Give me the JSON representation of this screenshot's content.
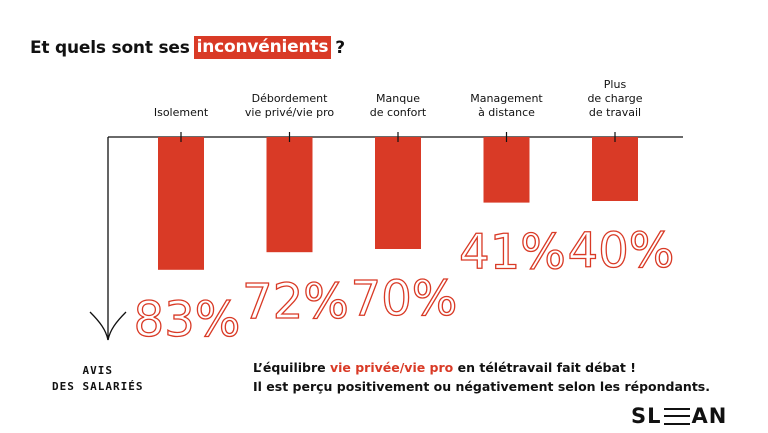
{
  "title": {
    "before": "Et quels sont ses",
    "highlight": "inconvénients",
    "after": "?"
  },
  "colors": {
    "accent": "#d93a26",
    "text": "#111111",
    "background": "#ffffff"
  },
  "chart_data": {
    "type": "bar",
    "orientation": "downward",
    "categories": [
      [
        "Isolement"
      ],
      [
        "Débordement",
        "vie privé/vie pro"
      ],
      [
        "Manque",
        "de confort"
      ],
      [
        "Management",
        "à distance"
      ],
      [
        "Plus",
        "de charge",
        "de travail"
      ]
    ],
    "values": [
      83,
      72,
      70,
      41,
      40
    ],
    "value_labels": [
      "83%",
      "72%",
      "70%",
      "41%",
      "40%"
    ],
    "ylabel": [
      "AVIS",
      "DES SALARIÉS"
    ],
    "ylim": [
      0,
      100
    ],
    "grid": false,
    "legend": "none"
  },
  "caption": {
    "line1_before": "L’équilibre ",
    "line1_highlight": "vie privée/vie pro",
    "line1_after": " en télétravail fait débat !",
    "line2": "Il est perçu positivement ou négativement selon les répondants."
  },
  "logo": {
    "left": "SL",
    "right": "AN"
  }
}
